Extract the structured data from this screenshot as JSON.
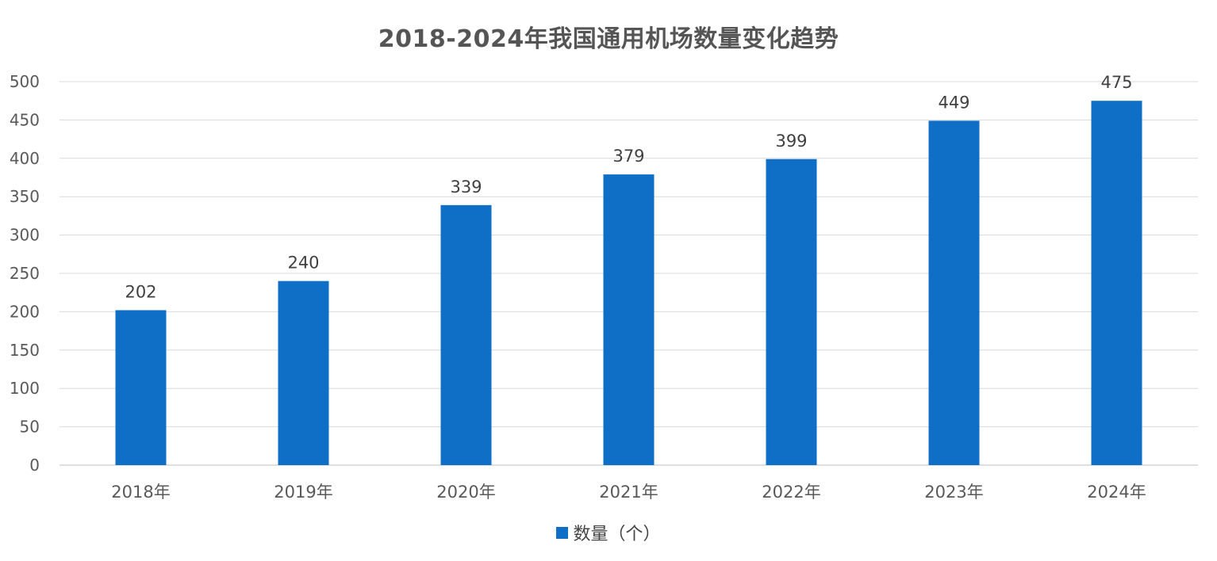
{
  "chart_data": {
    "type": "bar",
    "title": "2018-2024年我国通用机场数量变化趋势",
    "categories": [
      "2018年",
      "2019年",
      "2020年",
      "2021年",
      "2022年",
      "2023年",
      "2024年"
    ],
    "series": [
      {
        "name": "数量（个）",
        "values": [
          202,
          240,
          339,
          379,
          399,
          449,
          475
        ],
        "color": "#0f6fc6"
      }
    ],
    "ylim": [
      0,
      500
    ],
    "yticks": [
      0,
      50,
      100,
      150,
      200,
      250,
      300,
      350,
      400,
      450,
      500
    ],
    "grid": true,
    "data_labels": true,
    "legend_position": "bottom"
  }
}
